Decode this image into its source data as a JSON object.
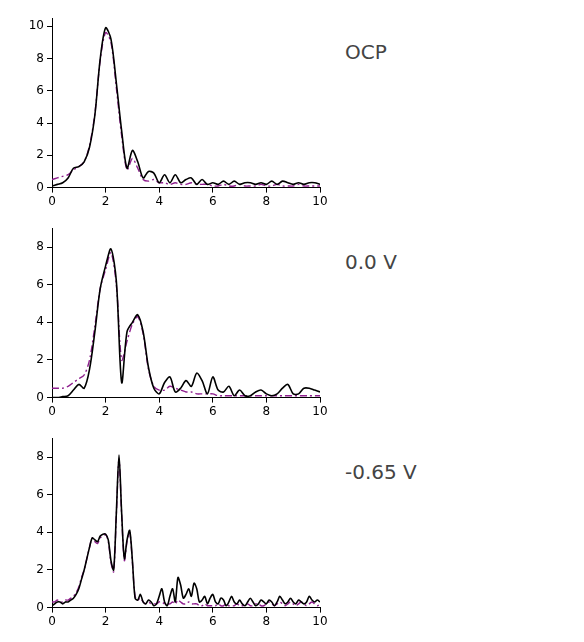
{
  "chart_data": [
    {
      "type": "line",
      "title": "OCP",
      "x": [
        0,
        0.2,
        0.4,
        0.6,
        0.8,
        1.0,
        1.2,
        1.4,
        1.6,
        1.8,
        2.0,
        2.2,
        2.4,
        2.6,
        2.8,
        3.0,
        3.2,
        3.4,
        3.6,
        3.8,
        4.0,
        4.2,
        4.4,
        4.6,
        4.8,
        5.0,
        5.2,
        5.4,
        5.6,
        5.8,
        6.0,
        6.2,
        6.4,
        6.6,
        6.8,
        7.0,
        7.2,
        7.4,
        7.6,
        7.8,
        8.0,
        8.2,
        8.4,
        8.6,
        8.8,
        9.0,
        9.2,
        9.4,
        9.6,
        9.8,
        10.0
      ],
      "series": [
        {
          "color": "#000000",
          "line_style": "solid",
          "values": [
            0.1,
            0.2,
            0.3,
            0.6,
            1.2,
            1.3,
            1.6,
            2.5,
            4.5,
            8.0,
            9.9,
            9.2,
            6.5,
            3.5,
            1.2,
            2.3,
            1.6,
            0.6,
            1.0,
            0.9,
            0.3,
            0.8,
            0.3,
            0.8,
            0.3,
            0.5,
            0.6,
            0.2,
            0.5,
            0.2,
            0.3,
            0.2,
            0.4,
            0.2,
            0.4,
            0.2,
            0.3,
            0.3,
            0.2,
            0.3,
            0.2,
            0.4,
            0.2,
            0.4,
            0.3,
            0.2,
            0.3,
            0.2,
            0.3,
            0.3,
            0.2
          ]
        },
        {
          "color": "#8e1f8e",
          "line_style": "dashdot",
          "values": [
            0.5,
            0.6,
            0.7,
            0.8,
            1.1,
            1.3,
            1.6,
            2.6,
            4.6,
            7.9,
            9.6,
            9.0,
            6.2,
            3.2,
            1.1,
            1.8,
            1.2,
            0.5,
            0.4,
            0.5,
            0.3,
            0.3,
            0.2,
            0.3,
            0.2,
            0.2,
            0.3,
            0.2,
            0.2,
            0.2,
            0.1,
            0.1,
            0.2,
            0.1,
            0.1,
            0.2,
            0.1,
            0.1,
            0.1,
            0.2,
            0.1,
            0.1,
            0.2,
            0.1,
            0.1,
            0.1,
            0.2,
            0.1,
            0.1,
            0.1,
            0.1
          ]
        }
      ],
      "xlim": [
        0,
        10
      ],
      "xticks": [
        0,
        2,
        4,
        6,
        8,
        10
      ],
      "ylim": [
        0,
        10.5
      ],
      "yticks": [
        0,
        2,
        4,
        6,
        8,
        10
      ],
      "grid": false
    },
    {
      "type": "line",
      "title": "0.0 V",
      "x": [
        0,
        0.2,
        0.4,
        0.6,
        0.8,
        1.0,
        1.2,
        1.4,
        1.6,
        1.8,
        2.0,
        2.2,
        2.4,
        2.6,
        2.8,
        3.0,
        3.2,
        3.4,
        3.6,
        3.8,
        4.0,
        4.2,
        4.4,
        4.6,
        4.8,
        5.0,
        5.2,
        5.4,
        5.6,
        5.8,
        6.0,
        6.2,
        6.4,
        6.6,
        6.8,
        7.0,
        7.2,
        7.4,
        7.6,
        7.8,
        8.0,
        8.2,
        8.4,
        8.6,
        8.8,
        9.0,
        9.2,
        9.4,
        9.6,
        9.8,
        10.0
      ],
      "series": [
        {
          "color": "#000000",
          "line_style": "solid",
          "values": [
            0,
            0,
            0.05,
            0.1,
            0.4,
            0.7,
            0.5,
            1.5,
            3.5,
            5.8,
            7.0,
            7.9,
            6.2,
            0.8,
            3.5,
            4.0,
            4.4,
            3.5,
            1.6,
            0.5,
            0.2,
            0.8,
            1.1,
            0.3,
            0.5,
            0.9,
            0.6,
            1.3,
            0.9,
            0.2,
            1.1,
            0.4,
            0.3,
            0.6,
            0.1,
            0.4,
            0.1,
            0.1,
            0.3,
            0.4,
            0.2,
            0.1,
            0.2,
            0.5,
            0.7,
            0.2,
            0.2,
            0.5,
            0.5,
            0.4,
            0.3
          ]
        },
        {
          "color": "#8e1f8e",
          "line_style": "dashdot",
          "values": [
            0.5,
            0.5,
            0.5,
            0.6,
            0.8,
            1.0,
            1.2,
            2.0,
            3.8,
            5.8,
            6.8,
            7.7,
            6.0,
            2.0,
            3.0,
            3.9,
            4.3,
            3.4,
            1.5,
            0.6,
            0.4,
            0.4,
            0.6,
            0.5,
            0.4,
            0.3,
            0.3,
            0.2,
            0.2,
            0.2,
            0.2,
            0.1,
            0.1,
            0.1,
            0.1,
            0.1,
            0.1,
            0.1,
            0.1,
            0.1,
            0.1,
            0.1,
            0.1,
            0.1,
            0.1,
            0.1,
            0.1,
            0.1,
            0.1,
            0.1,
            0.1
          ]
        }
      ],
      "xlim": [
        0,
        10
      ],
      "xticks": [
        0,
        2,
        4,
        6,
        8,
        10
      ],
      "ylim": [
        0,
        9
      ],
      "yticks": [
        0,
        2,
        4,
        6,
        8
      ],
      "grid": false
    },
    {
      "type": "line",
      "title": "-0.65 V",
      "x": [
        0,
        0.1,
        0.2,
        0.3,
        0.4,
        0.5,
        0.6,
        0.7,
        0.8,
        0.9,
        1.0,
        1.1,
        1.2,
        1.3,
        1.4,
        1.5,
        1.6,
        1.7,
        1.8,
        1.9,
        2.0,
        2.1,
        2.2,
        2.3,
        2.4,
        2.5,
        2.6,
        2.7,
        2.8,
        2.9,
        3.0,
        3.1,
        3.2,
        3.3,
        3.4,
        3.5,
        3.6,
        3.7,
        3.8,
        3.9,
        4.0,
        4.1,
        4.2,
        4.3,
        4.4,
        4.5,
        4.6,
        4.7,
        4.8,
        4.9,
        5.0,
        5.1,
        5.2,
        5.3,
        5.4,
        5.5,
        5.6,
        5.7,
        5.8,
        5.9,
        6.0,
        6.1,
        6.2,
        6.3,
        6.4,
        6.5,
        6.6,
        6.7,
        6.8,
        6.9,
        7.0,
        7.1,
        7.2,
        7.3,
        7.4,
        7.5,
        7.6,
        7.7,
        7.8,
        7.9,
        8.0,
        8.1,
        8.2,
        8.3,
        8.4,
        8.5,
        8.6,
        8.7,
        8.8,
        8.9,
        9.0,
        9.1,
        9.2,
        9.3,
        9.4,
        9.5,
        9.6,
        9.7,
        9.8,
        9.9,
        10.0
      ],
      "series": [
        {
          "color": "#000000",
          "line_style": "solid",
          "values": [
            0.1,
            0.2,
            0.3,
            0.3,
            0.2,
            0.3,
            0.3,
            0.4,
            0.5,
            0.7,
            1.0,
            1.5,
            2.0,
            2.6,
            3.2,
            3.7,
            3.6,
            3.5,
            3.8,
            3.9,
            3.9,
            3.6,
            2.5,
            2.0,
            5.0,
            8.1,
            5.0,
            2.6,
            3.6,
            4.1,
            2.5,
            0.5,
            0.4,
            0.7,
            0.3,
            0.2,
            0.4,
            0.3,
            0.1,
            0.2,
            0.6,
            1.0,
            0.3,
            0.1,
            0.6,
            1.0,
            0.3,
            1.6,
            1.2,
            0.5,
            0.7,
            1.0,
            0.6,
            1.3,
            1.0,
            0.3,
            0.4,
            0.6,
            0.2,
            0.5,
            0.7,
            0.3,
            0.2,
            0.5,
            0.4,
            0.1,
            0.3,
            0.6,
            0.3,
            0.2,
            0.4,
            0.2,
            0.1,
            0.3,
            0.5,
            0.3,
            0.1,
            0.2,
            0.4,
            0.3,
            0.2,
            0.4,
            0.3,
            0.1,
            0.3,
            0.6,
            0.4,
            0.2,
            0.3,
            0.5,
            0.3,
            0.2,
            0.4,
            0.3,
            0.2,
            0.3,
            0.6,
            0.4,
            0.3,
            0.4,
            0.3
          ]
        },
        {
          "color": "#8e1f8e",
          "line_style": "dashdot",
          "values": [
            0.3,
            0.3,
            0.4,
            0.3,
            0.3,
            0.4,
            0.4,
            0.5,
            0.6,
            0.8,
            1.1,
            1.6,
            2.0,
            2.6,
            3.2,
            3.7,
            3.5,
            3.4,
            3.7,
            3.8,
            3.9,
            3.5,
            2.4,
            1.9,
            4.9,
            7.9,
            4.9,
            2.5,
            3.5,
            4.0,
            2.4,
            0.6,
            0.4,
            0.5,
            0.3,
            0.2,
            0.3,
            0.2,
            0.2,
            0.2,
            0.3,
            0.3,
            0.2,
            0.2,
            0.2,
            0.3,
            0.2,
            0.4,
            0.3,
            0.2,
            0.2,
            0.3,
            0.2,
            0.2,
            0.2,
            0.1,
            0.1,
            0.2,
            0.1,
            0.1,
            0.1,
            0.1,
            0.2,
            0.1,
            0.1,
            0.2,
            0.1,
            0.1,
            0.1,
            0.2,
            0.1,
            0.1,
            0.1,
            0.2,
            0.1,
            0.1,
            0.2,
            0.2,
            0.1,
            0.1,
            0.2,
            0.3,
            0.2,
            0.1,
            0.2,
            0.3,
            0.2,
            0.1,
            0.2,
            0.3,
            0.2,
            0.1,
            0.2,
            0.3,
            0.2,
            0.1,
            0.2,
            0.3,
            0.2,
            0.1,
            0.2
          ]
        }
      ],
      "xlim": [
        0,
        10
      ],
      "xticks": [
        0,
        2,
        4,
        6,
        8,
        10
      ],
      "ylim": [
        0,
        9
      ],
      "yticks": [
        0,
        2,
        4,
        6,
        8
      ],
      "grid": false
    }
  ]
}
